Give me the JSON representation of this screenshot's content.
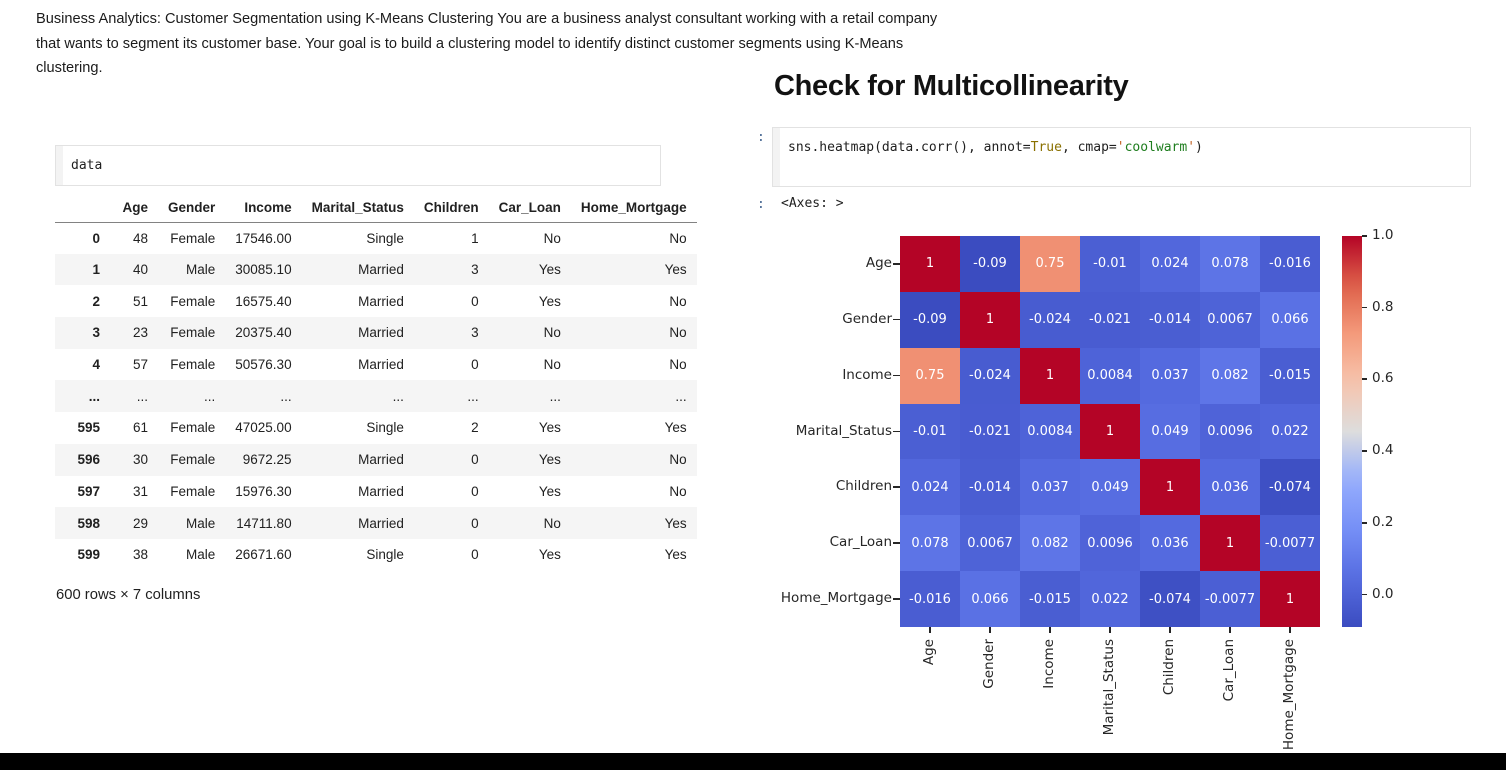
{
  "intro": {
    "text": "Business Analytics: Customer Segmentation using K-Means Clustering You are a business analyst consultant working with a retail company\nthat wants to segment its customer base. Your goal is to build a clustering model to identify distinct customer segments using K-Means\nclustering."
  },
  "left": {
    "code_input": "data",
    "table": {
      "columns": [
        "",
        "Age",
        "Gender",
        "Income",
        "Marital_Status",
        "Children",
        "Car_Loan",
        "Home_Mortgage"
      ],
      "rows": [
        [
          "0",
          "48",
          "Female",
          "17546.00",
          "Single",
          "1",
          "No",
          "No"
        ],
        [
          "1",
          "40",
          "Male",
          "30085.10",
          "Married",
          "3",
          "Yes",
          "Yes"
        ],
        [
          "2",
          "51",
          "Female",
          "16575.40",
          "Married",
          "0",
          "Yes",
          "No"
        ],
        [
          "3",
          "23",
          "Female",
          "20375.40",
          "Married",
          "3",
          "No",
          "No"
        ],
        [
          "4",
          "57",
          "Female",
          "50576.30",
          "Married",
          "0",
          "No",
          "No"
        ],
        [
          "...",
          "...",
          "...",
          "...",
          "...",
          "...",
          "...",
          "..."
        ],
        [
          "595",
          "61",
          "Female",
          "47025.00",
          "Single",
          "2",
          "Yes",
          "Yes"
        ],
        [
          "596",
          "30",
          "Female",
          "9672.25",
          "Married",
          "0",
          "Yes",
          "No"
        ],
        [
          "597",
          "31",
          "Female",
          "15976.30",
          "Married",
          "0",
          "Yes",
          "No"
        ],
        [
          "598",
          "29",
          "Male",
          "14711.80",
          "Married",
          "0",
          "No",
          "Yes"
        ],
        [
          "599",
          "38",
          "Male",
          "26671.60",
          "Single",
          "0",
          "Yes",
          "Yes"
        ]
      ],
      "footer": "600 rows × 7 columns"
    }
  },
  "right": {
    "heading": "Check for Multicollinearity",
    "in_prompt": ":",
    "out_prompt": ":",
    "code_tokens": [
      {
        "t": "sns.heatmap(data.corr(), annot=",
        "c": "#1f1f1f"
      },
      {
        "t": "True",
        "c": "#8a7000"
      },
      {
        "t": ", cmap=",
        "c": "#1f1f1f"
      },
      {
        "t": "'",
        "c": "#c06021"
      },
      {
        "t": "coolwarm",
        "c": "#1e7d1e"
      },
      {
        "t": "'",
        "c": "#c06021"
      },
      {
        "t": ")",
        "c": "#1f1f1f"
      }
    ],
    "output_text": "<Axes: >"
  },
  "chart_data": {
    "type": "heatmap",
    "cmap": "coolwarm",
    "annot": true,
    "labels": [
      "Age",
      "Gender",
      "Income",
      "Marital_Status",
      "Children",
      "Car_Loan",
      "Home_Mortgage"
    ],
    "matrix": [
      [
        "1",
        "-0.09",
        "0.75",
        "-0.01",
        "0.024",
        "0.078",
        "-0.016"
      ],
      [
        "-0.09",
        "1",
        "-0.024",
        "-0.021",
        "-0.014",
        "0.0067",
        "0.066"
      ],
      [
        "0.75",
        "-0.024",
        "1",
        "0.0084",
        "0.037",
        "0.082",
        "-0.015"
      ],
      [
        "-0.01",
        "-0.021",
        "0.0084",
        "1",
        "0.049",
        "0.0096",
        "0.022"
      ],
      [
        "0.024",
        "-0.014",
        "0.037",
        "0.049",
        "1",
        "0.036",
        "-0.074"
      ],
      [
        "0.078",
        "0.0067",
        "0.082",
        "0.0096",
        "0.036",
        "1",
        "-0.0077"
      ],
      [
        "-0.016",
        "0.066",
        "-0.015",
        "0.022",
        "-0.074",
        "-0.0077",
        "1"
      ]
    ],
    "vmin": -0.09,
    "vmax": 1.0,
    "colorbar_ticks": [
      "1.0",
      "0.8",
      "0.6",
      "0.4",
      "0.2",
      "0.0"
    ],
    "annot_color": "#ffffff",
    "diag_color_hint": "#b40426",
    "min_color_hint": "#3b4cc0"
  }
}
